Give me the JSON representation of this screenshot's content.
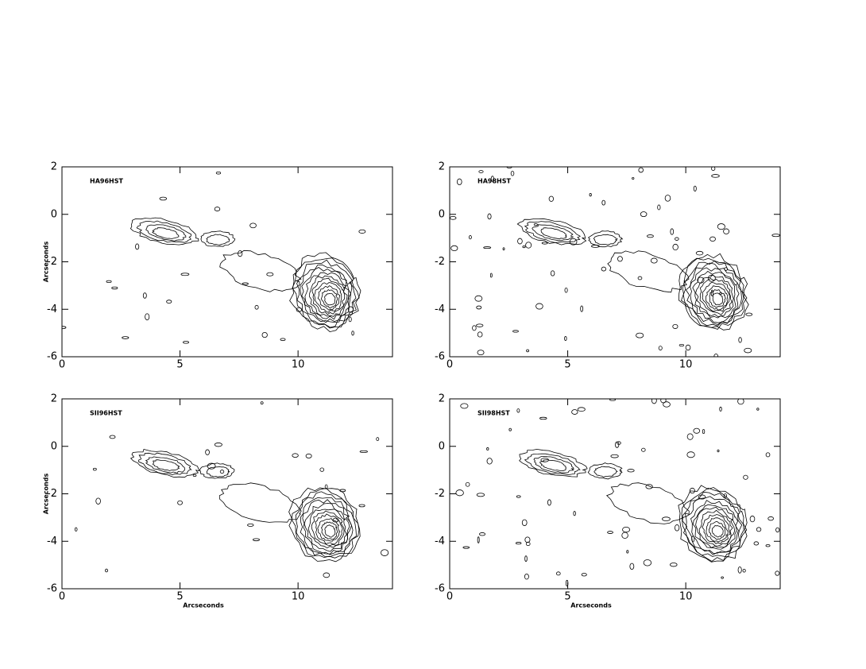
{
  "chart_data": [
    {
      "type": "contour",
      "label": "HA96HST",
      "ylabel": "Arcseconds",
      "xlim": [
        0,
        14
      ],
      "ylim": [
        -6,
        2
      ],
      "xticks": [
        0,
        5,
        10
      ],
      "yticks": [
        -6,
        -4,
        -2,
        0,
        2
      ]
    },
    {
      "type": "contour",
      "label": "HA98HST",
      "xlim": [
        0,
        14
      ],
      "ylim": [
        -6,
        2
      ],
      "xticks": [
        0,
        5,
        10
      ],
      "yticks": [
        -6,
        -4,
        -2,
        0,
        2
      ]
    },
    {
      "type": "contour",
      "label": "SII96HST",
      "ylabel": "Arcseconds",
      "xlabel": "Arcseconds",
      "xlim": [
        0,
        14
      ],
      "ylim": [
        -6,
        2
      ],
      "xticks": [
        0,
        5,
        10
      ],
      "yticks": [
        -6,
        -4,
        -2,
        0,
        2
      ]
    },
    {
      "type": "contour",
      "label": "SII98HST",
      "xlabel": "Arcseconds",
      "xlim": [
        0,
        14
      ],
      "ylim": [
        -6,
        2
      ],
      "xticks": [
        0,
        5,
        10
      ],
      "yticks": [
        -6,
        -4,
        -2,
        0,
        2
      ]
    }
  ]
}
